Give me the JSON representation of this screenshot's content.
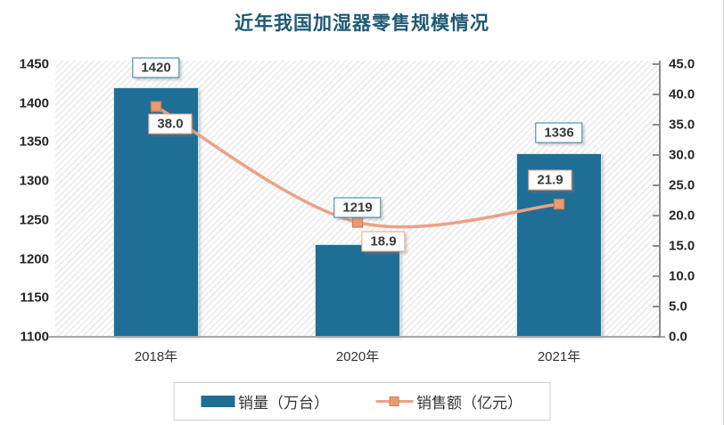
{
  "chart_data": {
    "type": "combo",
    "title": "近年我国加湿器零售规模情况",
    "categories": [
      "2018年",
      "2020年",
      "2021年"
    ],
    "series": [
      {
        "name": "销量（万台）",
        "type": "bar",
        "axis": "left",
        "values": [
          1420,
          1219,
          1336
        ],
        "labels": [
          "1420",
          "1219",
          "1336"
        ],
        "color": "#1F6E96"
      },
      {
        "name": "销售额（亿元）",
        "type": "line",
        "axis": "right",
        "values": [
          38.0,
          18.9,
          21.9
        ],
        "labels": [
          "38.0",
          "18.9",
          "21.9"
        ],
        "color": "#EBA285",
        "marker_color": "#EC9C6E"
      }
    ],
    "left_axis": {
      "min": 1100,
      "max": 1450,
      "step": 50,
      "ticks": [
        "1450",
        "1400",
        "1350",
        "1300",
        "1250",
        "1200",
        "1150",
        "1100"
      ]
    },
    "right_axis": {
      "min": 0,
      "max": 45,
      "step": 5,
      "ticks": [
        "45.0",
        "40.0",
        "35.0",
        "30.0",
        "25.0",
        "20.0",
        "15.0",
        "10.0",
        "5.0",
        "0.0"
      ]
    },
    "grid": false,
    "legend_position": "bottom",
    "plot_background": "diagonal-hatch",
    "title_color": "#1E5A73"
  }
}
